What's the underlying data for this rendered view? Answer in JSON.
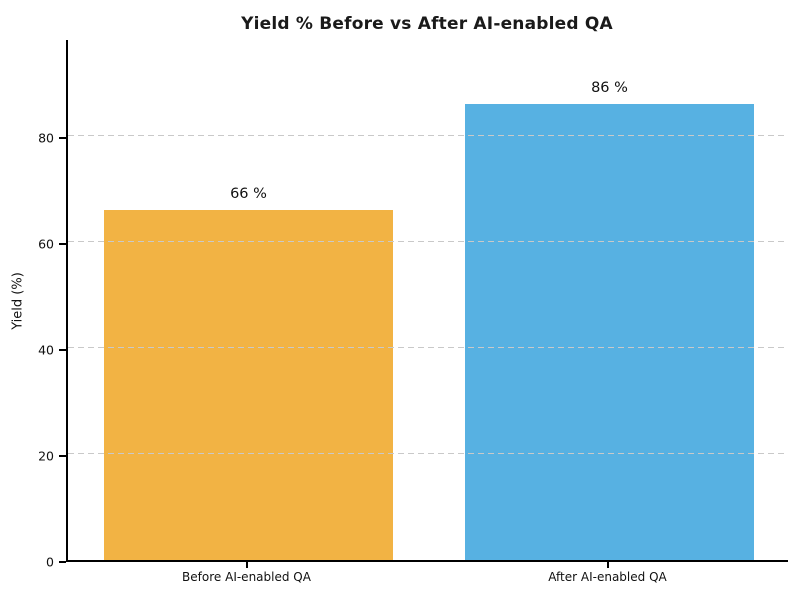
{
  "chart_data": {
    "type": "bar",
    "title": "Yield % Before vs After AI-enabled QA",
    "ylabel": "Yield (%)",
    "xlabel": "",
    "categories": [
      "Before AI-enabled QA",
      "After AI-enabled QA"
    ],
    "values": [
      66,
      86
    ],
    "value_labels": [
      "66 %",
      "86 %"
    ],
    "bar_colors": [
      "#F2B344",
      "#57B1E2"
    ],
    "yticks": [
      0,
      20,
      40,
      60,
      80
    ],
    "ylim": [
      0,
      98.5
    ],
    "grid": {
      "axis": "y",
      "style": "dashed",
      "color": "#c9c9c9",
      "drawn_above_bars": true
    },
    "legend_position": "none",
    "background": "#ffffff",
    "text_color": "#1a1a1a",
    "bar_width_fraction": 0.8
  }
}
